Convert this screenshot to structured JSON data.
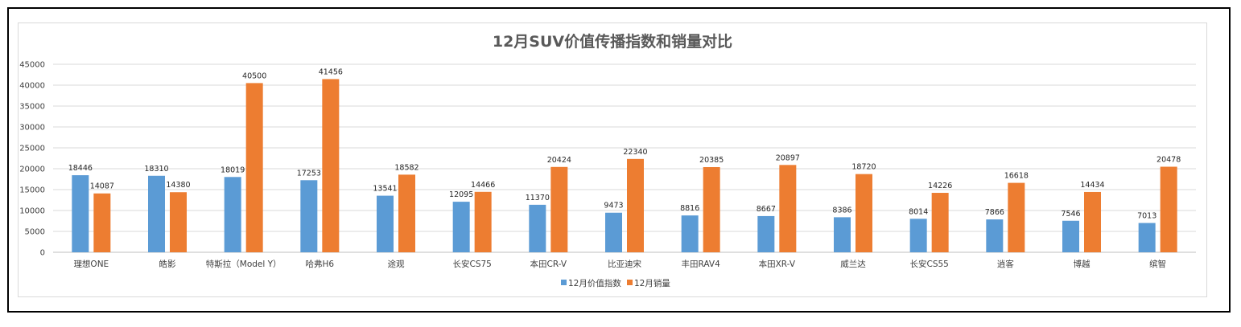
{
  "chart_data": {
    "type": "bar",
    "title": "12月SUV价值传播指数和销量对比",
    "xlabel": "",
    "ylabel": "",
    "ylim": [
      0,
      45000
    ],
    "yticks": [
      0,
      5000,
      10000,
      15000,
      20000,
      25000,
      30000,
      35000,
      40000,
      45000
    ],
    "grid": true,
    "legend_position": "bottom",
    "categories": [
      "理想ONE",
      "皓影",
      "特斯拉（Model Y）",
      "哈弗H6",
      "途观",
      "长安CS75",
      "本田CR-V",
      "比亚迪宋",
      "丰田RAV4",
      "本田XR-V",
      "威兰达",
      "长安CS55",
      "逍客",
      "博越",
      "缤智"
    ],
    "series": [
      {
        "name": "12月价值指数",
        "color": "#5b9bd5",
        "values": [
          18446,
          18310,
          18019,
          17253,
          13541,
          12095,
          11370,
          9473,
          8816,
          8667,
          8386,
          8014,
          7866,
          7546,
          7013
        ]
      },
      {
        "name": "12月销量",
        "color": "#ed7d31",
        "values": [
          14087,
          14380,
          40500,
          41456,
          18582,
          14466,
          20424,
          22340,
          20385,
          20897,
          18720,
          14226,
          16618,
          14434,
          20478
        ]
      }
    ]
  }
}
